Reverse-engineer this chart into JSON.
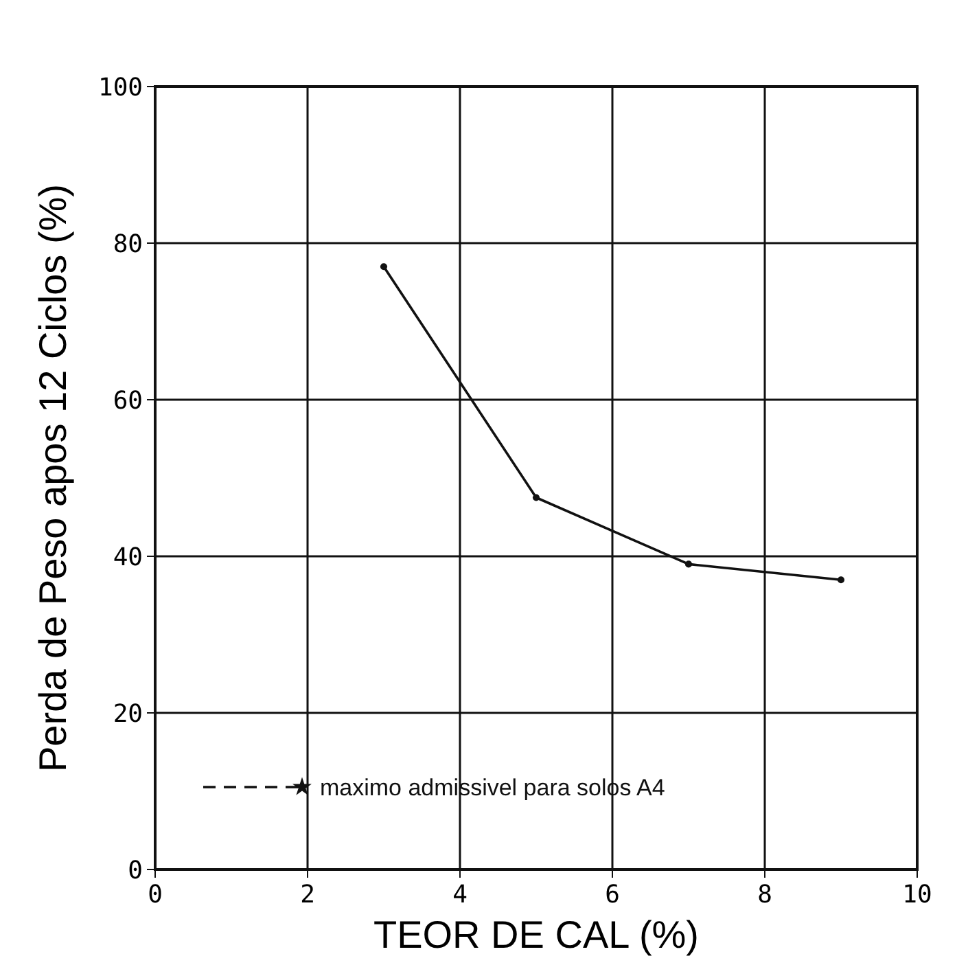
{
  "chart_data": {
    "type": "line",
    "xlabel": "TEOR DE CAL (%)",
    "ylabel": "Perda de Peso apos 12 Ciclos (%)",
    "x": [
      3,
      5,
      7,
      9
    ],
    "series": [
      {
        "name": null,
        "color": "#111111",
        "values": [
          77,
          47.5,
          39,
          37
        ],
        "marker": "circle",
        "line_style": "solid"
      },
      {
        "name": "maximo admissivel para solos A4",
        "color": "#111111",
        "values": [
          null,
          null,
          null,
          null
        ],
        "marker": "star",
        "line_style": "dashed"
      }
    ],
    "xlim": [
      0,
      10
    ],
    "xticks": [
      0,
      2,
      4,
      6,
      8,
      10
    ],
    "ylim": [
      0,
      100
    ],
    "yticks": [
      0,
      20,
      40,
      60,
      80,
      100
    ],
    "grid": true,
    "legend": "bottom left"
  }
}
